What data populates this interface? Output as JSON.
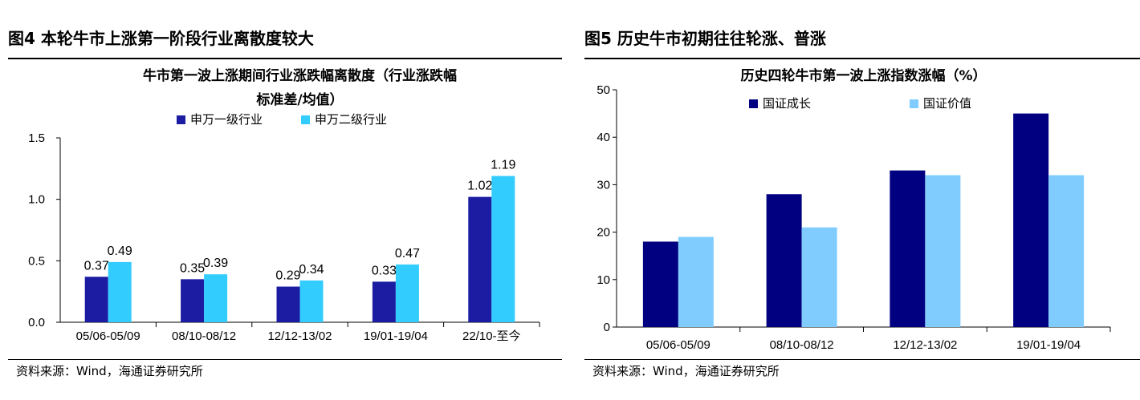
{
  "figures": [
    {
      "header": "图4  本轮牛市上涨第一阶段行业离散度较大",
      "source": "资料来源：Wind，海通证券研究所"
    },
    {
      "header": "图5  历史牛市初期往往轮涨、普涨",
      "source": "资料来源：Wind，海通证券研究所"
    }
  ],
  "chart_data": [
    {
      "type": "bar",
      "title": "牛市第一波上涨期间行业涨跌幅离散度（行业涨跌幅标准差/均值）",
      "title_lines": [
        "牛市第一波上涨期间行业涨跌幅离散度（行业涨跌幅",
        "标准差/均值）"
      ],
      "categories": [
        "05/06-05/09",
        "08/10-08/12",
        "12/12-13/02",
        "19/01-19/04",
        "22/10-至今"
      ],
      "series": [
        {
          "name": "申万一级行业",
          "color": "#1c1ca3",
          "values": [
            0.37,
            0.35,
            0.29,
            0.33,
            1.02
          ]
        },
        {
          "name": "申万二级行业",
          "color": "#33ccff",
          "values": [
            0.49,
            0.39,
            0.34,
            0.47,
            1.19
          ]
        }
      ],
      "ylim": [
        0,
        1.5
      ],
      "yticks": [
        "0.0",
        "0.5",
        "1.0",
        "1.5"
      ],
      "data_labels": true,
      "legend": "top-center",
      "grid": false,
      "xlabel": "",
      "ylabel": ""
    },
    {
      "type": "bar",
      "title": "历史四轮牛市第一波上涨指数涨幅（%）",
      "title_lines": [
        "历史四轮牛市第一波上涨指数涨幅（%）"
      ],
      "categories": [
        "05/06-05/09",
        "08/10-08/12",
        "12/12-13/02",
        "19/01-19/04"
      ],
      "series": [
        {
          "name": "国证成长",
          "color": "#000080",
          "values": [
            18,
            28,
            33,
            45
          ]
        },
        {
          "name": "国证价值",
          "color": "#80ccff",
          "values": [
            19,
            21,
            32,
            32
          ]
        }
      ],
      "ylim": [
        0,
        50
      ],
      "yticks": [
        "0",
        "10",
        "20",
        "30",
        "40",
        "50"
      ],
      "data_labels": false,
      "legend": "top-center",
      "grid": false,
      "xlabel": "",
      "ylabel": ""
    }
  ]
}
